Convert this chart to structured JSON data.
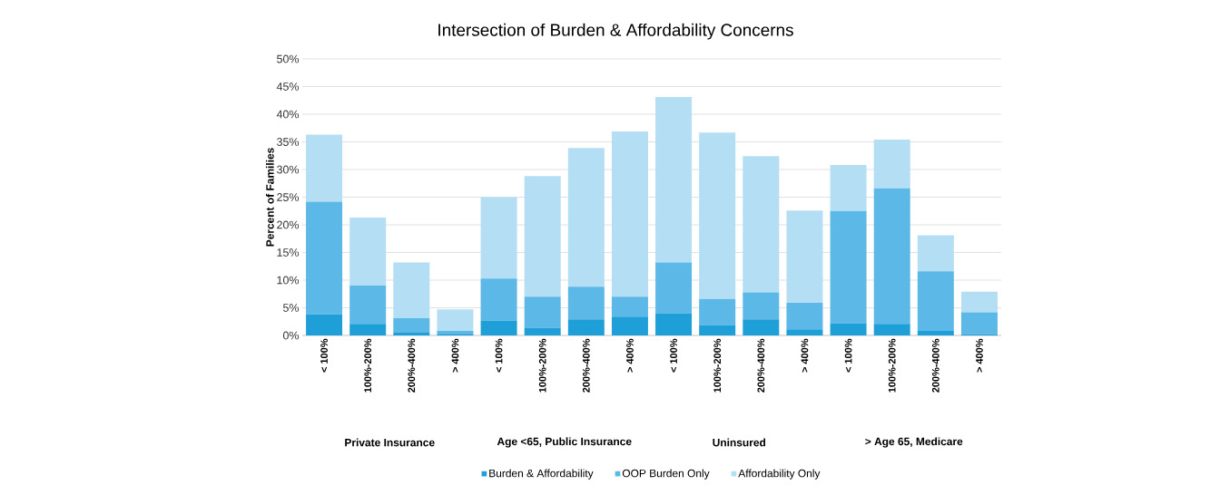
{
  "chart_data": {
    "type": "bar",
    "stacked": true,
    "title": "Intersection of Burden & Affordability Concerns",
    "ylabel": "Percent of Families",
    "categories": [
      "< 100%",
      "100%-200%",
      "200%-400%",
      "> 400%",
      "< 100%",
      "100%-200%",
      "200%-400%",
      "> 400%",
      "< 100%",
      "100%-200%",
      "200%-400%",
      "> 400%",
      "< 100%",
      "100%-200%",
      "200%-400%",
      "> 400%"
    ],
    "annotations": [
      "Private Insurance",
      "Age <65, Public Insurance",
      "Uninsured",
      "> Age 65, Medicare"
    ],
    "series": [
      {
        "name": "Burden & Affordability",
        "color": "#1f9fd8",
        "values": [
          3.8,
          2.1,
          0.5,
          0.3,
          2.7,
          1.4,
          2.9,
          3.4,
          4.0,
          1.9,
          2.9,
          1.1,
          2.2,
          2.1,
          0.8,
          0.2
        ]
      },
      {
        "name": "OOP Burden Only",
        "color": "#5cb8e6",
        "values": [
          20.4,
          6.9,
          2.6,
          0.5,
          7.6,
          5.6,
          5.9,
          3.6,
          9.2,
          4.7,
          4.9,
          4.8,
          20.3,
          24.5,
          10.8,
          4.0
        ]
      },
      {
        "name": "Affordability Only",
        "color": "#b3def4",
        "values": [
          12.1,
          12.3,
          10.1,
          3.9,
          14.7,
          21.8,
          25.1,
          29.9,
          29.9,
          30.1,
          24.6,
          16.7,
          8.3,
          8.8,
          6.5,
          3.7
        ]
      }
    ],
    "ylim": [
      0,
      50
    ],
    "yticks": [
      {
        "value": 0,
        "label": "0%"
      },
      {
        "value": 5,
        "label": "5%"
      },
      {
        "value": 10,
        "label": "10%"
      },
      {
        "value": 15,
        "label": "15%"
      },
      {
        "value": 20,
        "label": "20%"
      },
      {
        "value": 25,
        "label": "25%"
      },
      {
        "value": 30,
        "label": "30%"
      },
      {
        "value": 35,
        "label": "35%"
      },
      {
        "value": 40,
        "label": "40%"
      },
      {
        "value": 45,
        "label": "45%"
      },
      {
        "value": 50,
        "label": "50%"
      }
    ],
    "grid": "y",
    "legend": "bottom"
  }
}
